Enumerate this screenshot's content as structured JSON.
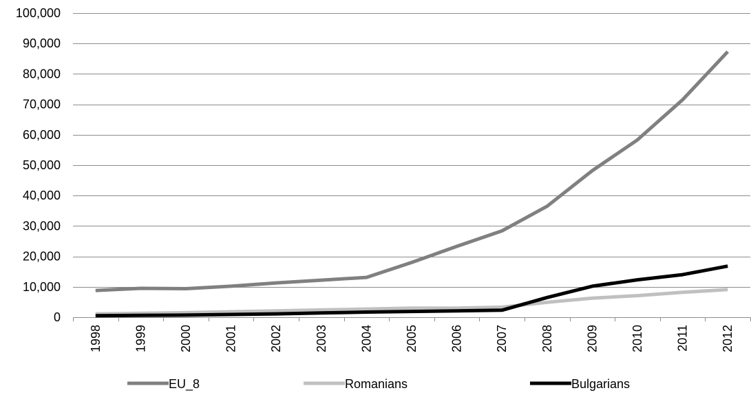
{
  "chart_data": {
    "type": "line",
    "title": "",
    "xlabel": "",
    "ylabel": "",
    "x": [
      "1998",
      "1999",
      "2000",
      "2001",
      "2002",
      "2003",
      "2004",
      "2005",
      "2006",
      "2007",
      "2008",
      "2009",
      "2010",
      "2011",
      "2012"
    ],
    "ylim": [
      0,
      100000
    ],
    "yticks": [
      0,
      10000,
      20000,
      30000,
      40000,
      50000,
      60000,
      70000,
      80000,
      90000,
      100000
    ],
    "ytick_labels": [
      "0",
      "10,000",
      "20,000",
      "30,000",
      "40,000",
      "50,000",
      "60,000",
      "70,000",
      "80,000",
      "90,000",
      "100,000"
    ],
    "grid": "horizontal",
    "legend_position": "bottom",
    "series": [
      {
        "name": "EU_8",
        "color": "#808080",
        "values": [
          8800,
          9500,
          9400,
          10200,
          11300,
          12200,
          13100,
          18000,
          23300,
          28400,
          36500,
          48200,
          58300,
          71500,
          87300
        ]
      },
      {
        "name": "Romanians",
        "color": "#c0c0c0",
        "values": [
          1100,
          1300,
          1500,
          1800,
          2100,
          2400,
          2700,
          3000,
          3000,
          3300,
          4900,
          6300,
          7100,
          8200,
          9100
        ]
      },
      {
        "name": "Bulgarians",
        "color": "#000000",
        "values": [
          500,
          600,
          700,
          900,
          1100,
          1400,
          1700,
          1900,
          2100,
          2300,
          6500,
          10200,
          12300,
          14000,
          16800
        ]
      }
    ]
  }
}
